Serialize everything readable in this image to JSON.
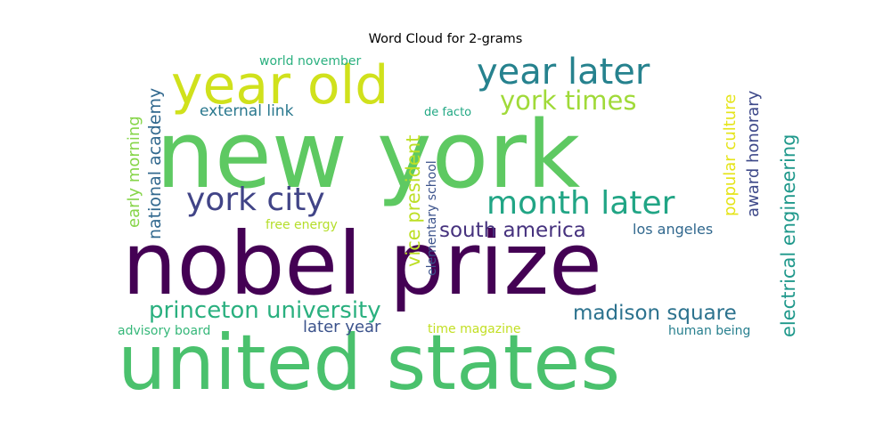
{
  "title": "Word Cloud for 2-grams",
  "words": [
    {
      "text": "new york",
      "color": "#5ec962"
    },
    {
      "text": "nobel prize",
      "color": "#440154"
    },
    {
      "text": "united states",
      "color": "#4ac16d"
    },
    {
      "text": "year old",
      "color": "#d0e11c"
    },
    {
      "text": "year later",
      "color": "#26828e"
    },
    {
      "text": "york times",
      "color": "#a0da39"
    },
    {
      "text": "york city",
      "color": "#414487"
    },
    {
      "text": "month later",
      "color": "#21a585"
    },
    {
      "text": "princeton university",
      "color": "#2ab07f"
    },
    {
      "text": "madison square",
      "color": "#2c728e"
    },
    {
      "text": "south america",
      "color": "#46327e"
    },
    {
      "text": "los angeles",
      "color": "#31688e"
    },
    {
      "text": "later year",
      "color": "#3b528b"
    },
    {
      "text": "electrical engineering",
      "color": "#1f988b"
    },
    {
      "text": "vice president",
      "color": "#bddf26"
    },
    {
      "text": "national academy",
      "color": "#31688e"
    },
    {
      "text": "early morning",
      "color": "#86d549"
    },
    {
      "text": "popular culture",
      "color": "#e5e419"
    },
    {
      "text": "award honorary",
      "color": "#3e4989"
    },
    {
      "text": "external link",
      "color": "#2a788e"
    },
    {
      "text": "world november",
      "color": "#2ab07f"
    },
    {
      "text": "elementary school",
      "color": "#3b528b"
    },
    {
      "text": "de facto",
      "color": "#22a884"
    },
    {
      "text": "free energy",
      "color": "#b5de2b"
    },
    {
      "text": "advisory board",
      "color": "#35b779"
    },
    {
      "text": "time magazine",
      "color": "#c2df23"
    },
    {
      "text": "human being",
      "color": "#277f8e"
    }
  ]
}
